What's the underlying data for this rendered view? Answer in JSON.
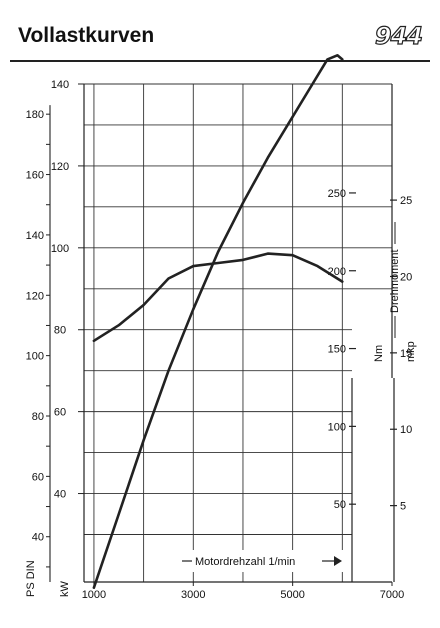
{
  "header": {
    "title": "Vollastkurven",
    "model": "944"
  },
  "chart_data": {
    "type": "line",
    "grid": true,
    "x": {
      "label": "Motordrehzahl 1/min",
      "range": [
        800,
        7000
      ],
      "ticks": [
        1000,
        3000,
        5000,
        7000
      ]
    },
    "y_axes": {
      "ps": {
        "label": "PS DIN",
        "range": [
          25,
          190
        ],
        "ticks": [
          40,
          60,
          80,
          100,
          120,
          140,
          160,
          180
        ]
      },
      "kw": {
        "label": "kW",
        "range": [
          18.4,
          140
        ],
        "ticks": [
          40,
          60,
          80,
          100,
          120,
          140
        ]
      },
      "nm": {
        "label": "Nm",
        "range": [
          0,
          320
        ],
        "ticks": [
          50,
          100,
          150,
          200,
          250
        ]
      },
      "mkp": {
        "label": "mkp",
        "range": [
          0,
          32.6
        ],
        "ticks": [
          5,
          10,
          15,
          20,
          25
        ]
      },
      "torque_title": "Drehmoment"
    },
    "series": [
      {
        "axis": "kw",
        "color": "#222222",
        "points": [
          [
            1000,
            17
          ],
          [
            1500,
            35
          ],
          [
            2000,
            53
          ],
          [
            2500,
            70
          ],
          [
            3000,
            85
          ],
          [
            3500,
            99
          ],
          [
            4000,
            111
          ],
          [
            4500,
            122
          ],
          [
            5000,
            132
          ],
          [
            5400,
            140
          ],
          [
            5700,
            146
          ],
          [
            5900,
            147
          ],
          [
            6000,
            146
          ]
        ]
      },
      {
        "axis": "nm",
        "color": "#222222",
        "points": [
          [
            1000,
            155
          ],
          [
            1500,
            165
          ],
          [
            2000,
            178
          ],
          [
            2500,
            195
          ],
          [
            3000,
            203
          ],
          [
            3500,
            205
          ],
          [
            4000,
            207
          ],
          [
            4500,
            211
          ],
          [
            5000,
            210
          ],
          [
            5500,
            203
          ],
          [
            6000,
            193
          ]
        ]
      }
    ]
  }
}
